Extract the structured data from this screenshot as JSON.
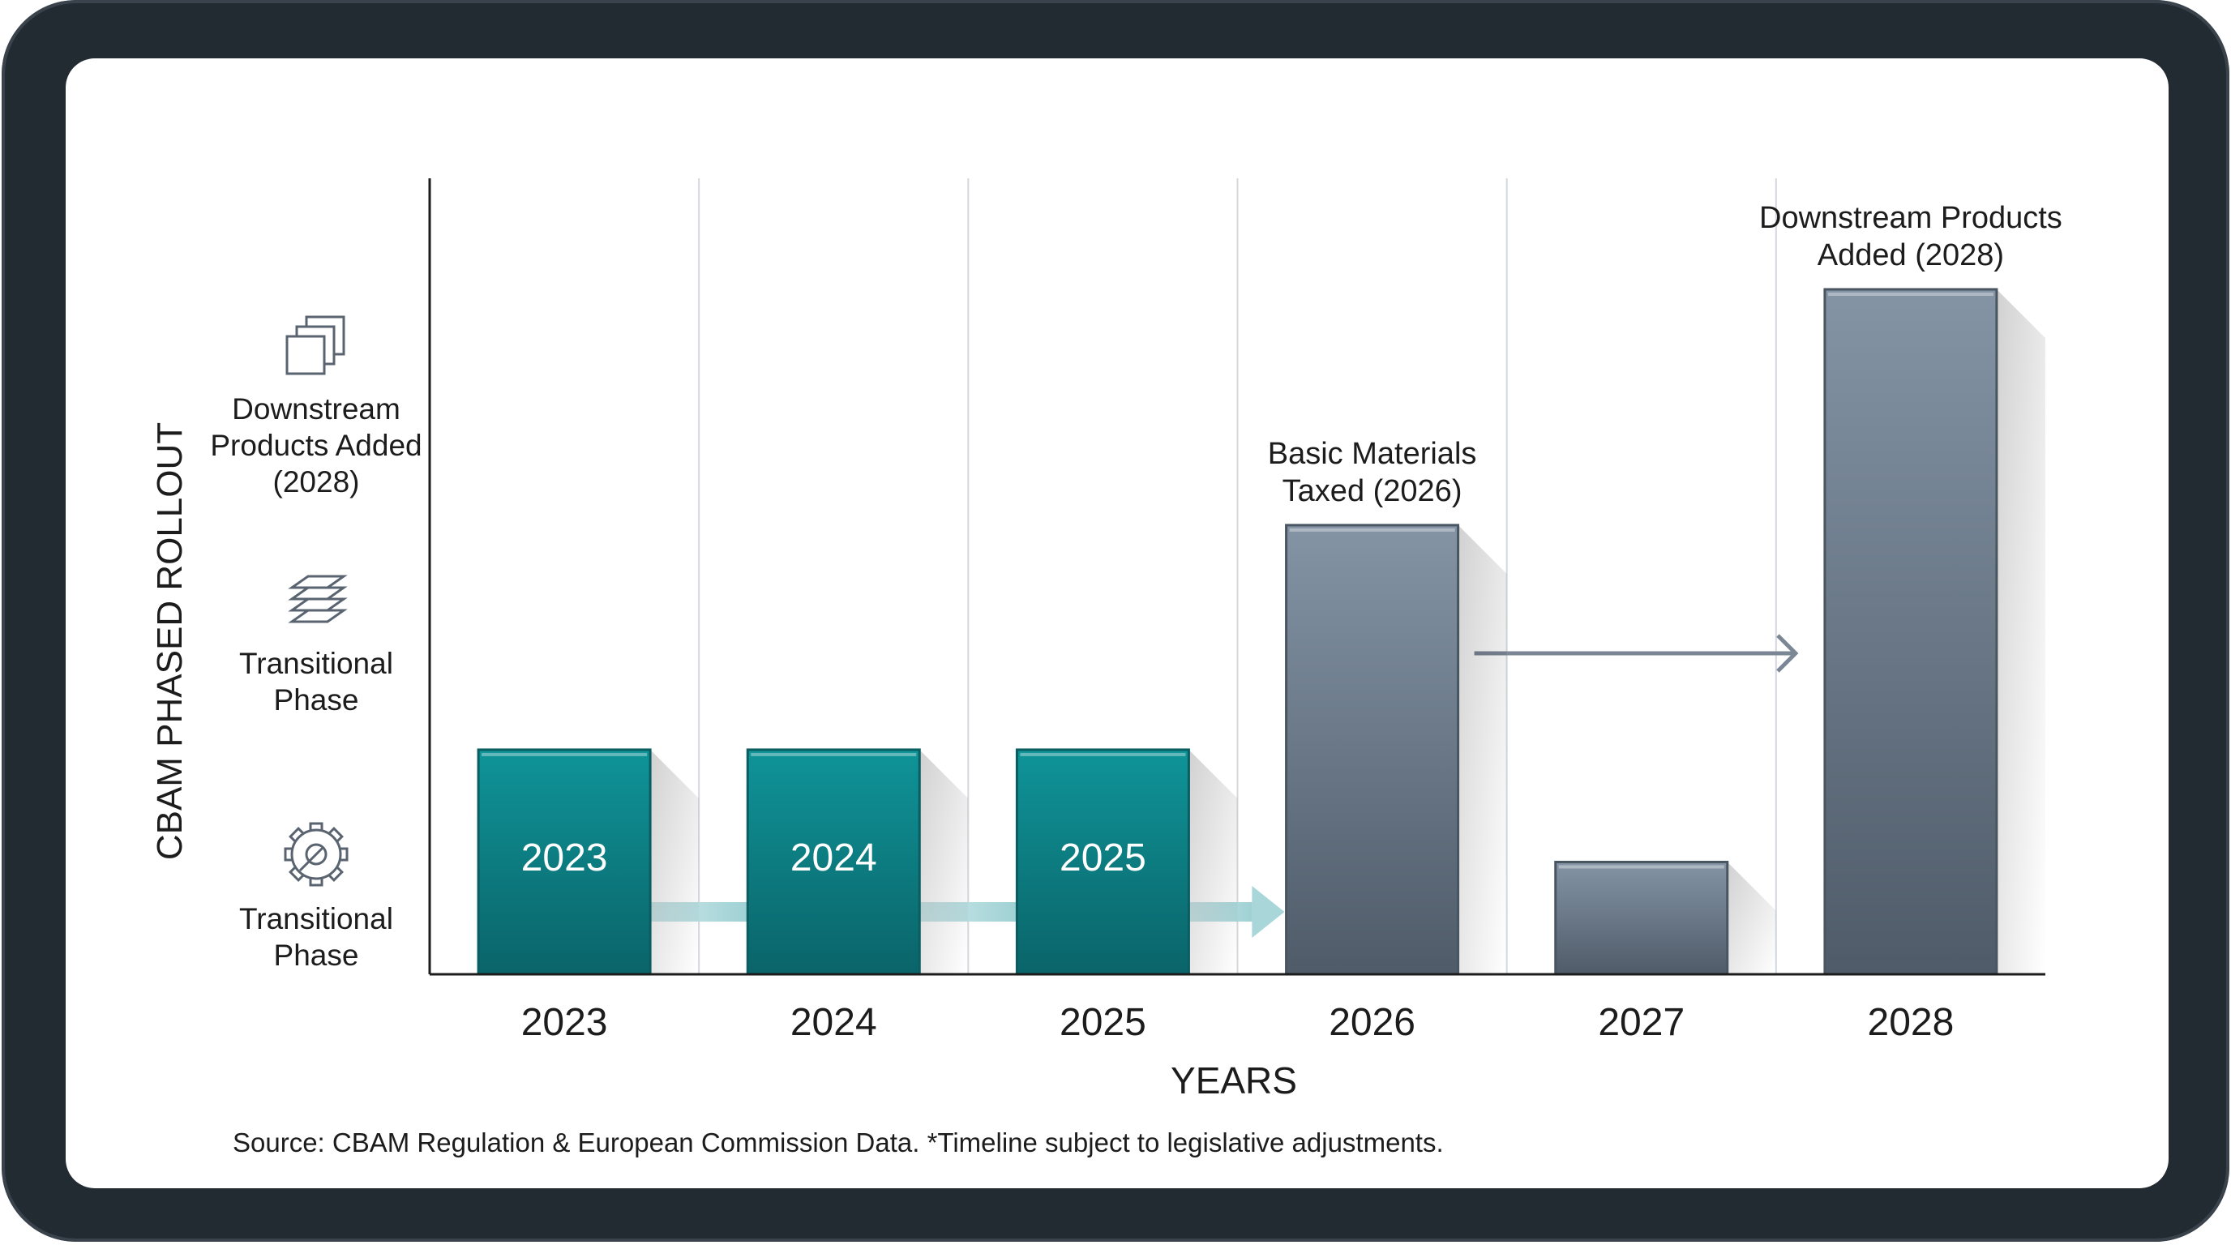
{
  "chart_data": {
    "type": "bar",
    "title": "",
    "xlabel": "YEARS",
    "ylabel": "CBAM PHASED ROLLOUT",
    "categories": [
      "2023",
      "2024",
      "2025",
      "2026",
      "2027",
      "2028"
    ],
    "values": [
      1,
      1,
      1,
      2,
      0.5,
      3.05
    ],
    "ylim": [
      0,
      3.4
    ],
    "bar_labels": [
      "2023",
      "2024",
      "2025",
      "",
      "",
      ""
    ],
    "bar_colors": [
      "#0e8a8f",
      "#0e8a8f",
      "#0e8a8f",
      "#6c7b8b",
      "#5f6c7b",
      "#5f6c7b"
    ],
    "y_levels": [
      {
        "label_lines": [
          "Transitional",
          "Phase"
        ],
        "icon": "gear-wrench-icon",
        "value": 0.5
      },
      {
        "label_lines": [
          "Transitional",
          "Phase"
        ],
        "icon": "stacked-layers-icon",
        "value": 1.6
      },
      {
        "label_lines": [
          "Downstream",
          "Products Added",
          "(2028)"
        ],
        "icon": "copy-squares-icon",
        "value": 2.7
      }
    ],
    "annotations": [
      {
        "category": "2026",
        "lines": [
          "Basic Materials",
          "Taxed (2026)"
        ]
      },
      {
        "category": "2028",
        "lines": [
          "Downstream Products",
          "Added (2028)"
        ]
      }
    ],
    "grid": true,
    "legend": "none",
    "source_note": "Source: CBAM Regulation & European Commission Data. *Timeline subject to legislative adjustments."
  },
  "colors": {
    "teal": "#0e8a8f",
    "slate": "#6c7b8b",
    "axis": "#1c1c1c",
    "grid": "#d4d8dc",
    "arrow_teal": "#a9d6d9",
    "arrow_slate": "#7c8796"
  }
}
